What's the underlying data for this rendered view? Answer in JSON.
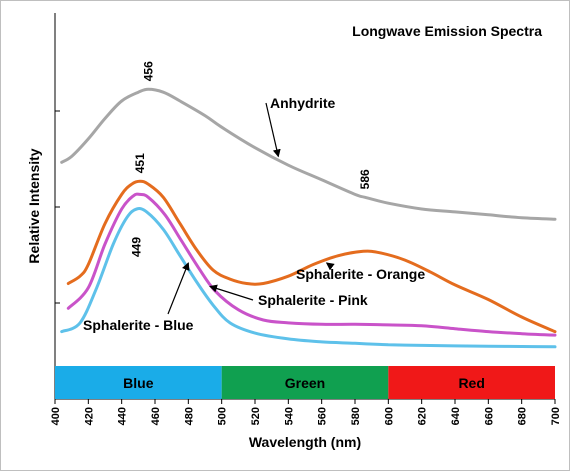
{
  "chart_data": {
    "type": "line",
    "title": "Longwave Emission Spectra",
    "xlabel": "Wavelength (nm)",
    "ylabel": "Relative Intensity",
    "xlim": [
      400,
      700
    ],
    "ylim": [
      0,
      1
    ],
    "x_ticks": [
      400,
      420,
      440,
      460,
      480,
      500,
      520,
      540,
      560,
      580,
      600,
      620,
      640,
      660,
      680,
      700
    ],
    "grid": false,
    "y_tick_labels": false,
    "series": [
      {
        "name": "Anhydrite",
        "color": "#a6a6a6",
        "points": [
          [
            404,
            0.66
          ],
          [
            410,
            0.68
          ],
          [
            420,
            0.74
          ],
          [
            430,
            0.81
          ],
          [
            440,
            0.87
          ],
          [
            450,
            0.9
          ],
          [
            456,
            0.91
          ],
          [
            465,
            0.9
          ],
          [
            475,
            0.87
          ],
          [
            490,
            0.82
          ],
          [
            500,
            0.78
          ],
          [
            520,
            0.71
          ],
          [
            540,
            0.65
          ],
          [
            560,
            0.6
          ],
          [
            580,
            0.55
          ],
          [
            586,
            0.54
          ],
          [
            600,
            0.52
          ],
          [
            620,
            0.5
          ],
          [
            640,
            0.49
          ],
          [
            660,
            0.48
          ],
          [
            680,
            0.47
          ],
          [
            700,
            0.465
          ]
        ]
      },
      {
        "name": "Sphalerite - Orange",
        "color": "#e46c1e",
        "points": [
          [
            408,
            0.245
          ],
          [
            415,
            0.27
          ],
          [
            420,
            0.31
          ],
          [
            430,
            0.45
          ],
          [
            440,
            0.55
          ],
          [
            446,
            0.585
          ],
          [
            451,
            0.595
          ],
          [
            456,
            0.585
          ],
          [
            465,
            0.54
          ],
          [
            475,
            0.45
          ],
          [
            485,
            0.36
          ],
          [
            495,
            0.29
          ],
          [
            505,
            0.26
          ],
          [
            515,
            0.245
          ],
          [
            525,
            0.245
          ],
          [
            540,
            0.27
          ],
          [
            555,
            0.31
          ],
          [
            570,
            0.34
          ],
          [
            585,
            0.355
          ],
          [
            595,
            0.35
          ],
          [
            610,
            0.325
          ],
          [
            625,
            0.285
          ],
          [
            640,
            0.24
          ],
          [
            660,
            0.19
          ],
          [
            680,
            0.13
          ],
          [
            700,
            0.08
          ]
        ]
      },
      {
        "name": "Sphalerite - Pink",
        "color": "#c953c9",
        "points": [
          [
            408,
            0.16
          ],
          [
            420,
            0.23
          ],
          [
            430,
            0.38
          ],
          [
            440,
            0.5
          ],
          [
            447,
            0.545
          ],
          [
            451,
            0.55
          ],
          [
            456,
            0.54
          ],
          [
            466,
            0.48
          ],
          [
            476,
            0.39
          ],
          [
            486,
            0.3
          ],
          [
            496,
            0.22
          ],
          [
            510,
            0.155
          ],
          [
            525,
            0.12
          ],
          [
            540,
            0.11
          ],
          [
            560,
            0.105
          ],
          [
            580,
            0.105
          ],
          [
            600,
            0.103
          ],
          [
            620,
            0.1
          ],
          [
            640,
            0.09
          ],
          [
            660,
            0.08
          ],
          [
            680,
            0.073
          ],
          [
            700,
            0.068
          ]
        ]
      },
      {
        "name": "Sphalerite - Blue",
        "color": "#5ec1ea",
        "points": [
          [
            404,
            0.08
          ],
          [
            415,
            0.11
          ],
          [
            425,
            0.23
          ],
          [
            435,
            0.38
          ],
          [
            443,
            0.47
          ],
          [
            449,
            0.5
          ],
          [
            455,
            0.49
          ],
          [
            465,
            0.43
          ],
          [
            475,
            0.34
          ],
          [
            485,
            0.25
          ],
          [
            495,
            0.17
          ],
          [
            505,
            0.11
          ],
          [
            520,
            0.075
          ],
          [
            540,
            0.055
          ],
          [
            560,
            0.045
          ],
          [
            580,
            0.04
          ],
          [
            600,
            0.035
          ],
          [
            620,
            0.033
          ],
          [
            640,
            0.031
          ],
          [
            660,
            0.03
          ],
          [
            680,
            0.029
          ],
          [
            700,
            0.028
          ]
        ]
      }
    ],
    "bands": [
      {
        "label": "Blue",
        "from": 400,
        "to": 500,
        "color": "#1aace8"
      },
      {
        "label": "Green",
        "from": 500,
        "to": 600,
        "color": "#10a050"
      },
      {
        "label": "Red",
        "from": 600,
        "to": 700,
        "color": "#f01818"
      }
    ],
    "peak_labels": [
      {
        "text": "456",
        "x": 456,
        "y": 0.91,
        "rotate": true
      },
      {
        "text": "451",
        "x": 451,
        "y": 0.595,
        "rotate": true
      },
      {
        "text": "449",
        "x": 449,
        "y": 0.5,
        "rotate": true
      },
      {
        "text": "586",
        "x": 586,
        "y": 0.54,
        "rotate": true
      }
    ],
    "annotations": [
      {
        "text": "Anhydrite",
        "target": [
          534,
          0.68
        ]
      },
      {
        "text": "Sphalerite - Orange",
        "target": [
          563,
          0.315
        ]
      },
      {
        "text": "Sphalerite - Pink",
        "target": [
          493,
          0.235
        ]
      },
      {
        "text": "Sphalerite - Blue",
        "target": [
          480,
          0.315
        ]
      }
    ]
  }
}
